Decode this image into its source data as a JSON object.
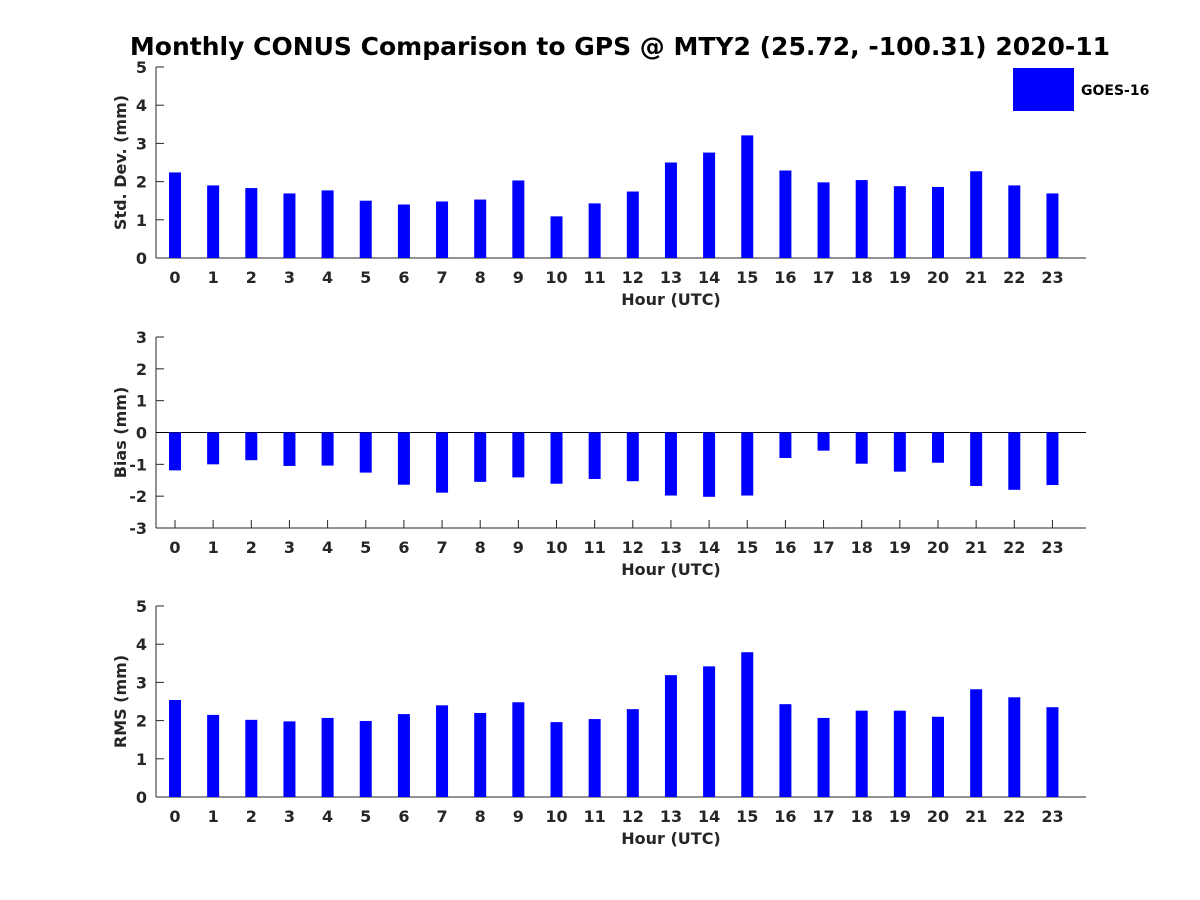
{
  "title": "Monthly CONUS Comparison to GPS @ MTY2 (25.72, -100.31) 2020-11",
  "legend": {
    "label": "GOES-16",
    "position": "top-right",
    "color": "#0000ff"
  },
  "bar_color": "#0000ff",
  "chart_data": [
    {
      "type": "bar",
      "xlabel": "Hour (UTC)",
      "ylabel": "Std. Dev. (mm)",
      "ylim": [
        0,
        5
      ],
      "yticks": [
        "0",
        "1",
        "2",
        "3",
        "4",
        "5"
      ],
      "categories": [
        "0",
        "1",
        "2",
        "3",
        "4",
        "5",
        "6",
        "7",
        "8",
        "9",
        "10",
        "11",
        "12",
        "13",
        "14",
        "15",
        "16",
        "17",
        "18",
        "19",
        "20",
        "21",
        "22",
        "23"
      ],
      "series": [
        {
          "name": "GOES-16",
          "values": [
            2.24,
            1.9,
            1.83,
            1.69,
            1.77,
            1.5,
            1.4,
            1.48,
            1.53,
            2.03,
            1.09,
            1.43,
            1.74,
            2.5,
            2.76,
            3.21,
            2.29,
            1.98,
            2.04,
            1.88,
            1.86,
            2.27,
            1.9,
            1.69
          ]
        }
      ]
    },
    {
      "type": "bar",
      "xlabel": "Hour (UTC)",
      "ylabel": "Bias (mm)",
      "ylim": [
        -3,
        3
      ],
      "yticks": [
        "-3",
        "-2",
        "-1",
        "0",
        "1",
        "2",
        "3"
      ],
      "categories": [
        "0",
        "1",
        "2",
        "3",
        "4",
        "5",
        "6",
        "7",
        "8",
        "9",
        "10",
        "11",
        "12",
        "13",
        "14",
        "15",
        "16",
        "17",
        "18",
        "19",
        "20",
        "21",
        "22",
        "23"
      ],
      "series": [
        {
          "name": "GOES-16",
          "values": [
            -1.19,
            -1.0,
            -0.87,
            -1.05,
            -1.04,
            -1.26,
            -1.64,
            -1.89,
            -1.55,
            -1.41,
            -1.61,
            -1.46,
            -1.53,
            -1.98,
            -2.02,
            -1.98,
            -0.8,
            -0.57,
            -0.98,
            -1.23,
            -0.95,
            -1.68,
            -1.8,
            -1.65
          ]
        }
      ]
    },
    {
      "type": "bar",
      "xlabel": "Hour (UTC)",
      "ylabel": "RMS (mm)",
      "ylim": [
        0,
        5
      ],
      "yticks": [
        "0",
        "1",
        "2",
        "3",
        "4",
        "5"
      ],
      "categories": [
        "0",
        "1",
        "2",
        "3",
        "4",
        "5",
        "6",
        "7",
        "8",
        "9",
        "10",
        "11",
        "12",
        "13",
        "14",
        "15",
        "16",
        "17",
        "18",
        "19",
        "20",
        "21",
        "22",
        "23"
      ],
      "series": [
        {
          "name": "GOES-16",
          "values": [
            2.54,
            2.15,
            2.02,
            1.98,
            2.07,
            1.99,
            2.17,
            2.4,
            2.2,
            2.48,
            1.96,
            2.04,
            2.3,
            3.19,
            3.42,
            3.79,
            2.43,
            2.07,
            2.26,
            2.26,
            2.1,
            2.82,
            2.61,
            2.35
          ]
        }
      ]
    }
  ]
}
